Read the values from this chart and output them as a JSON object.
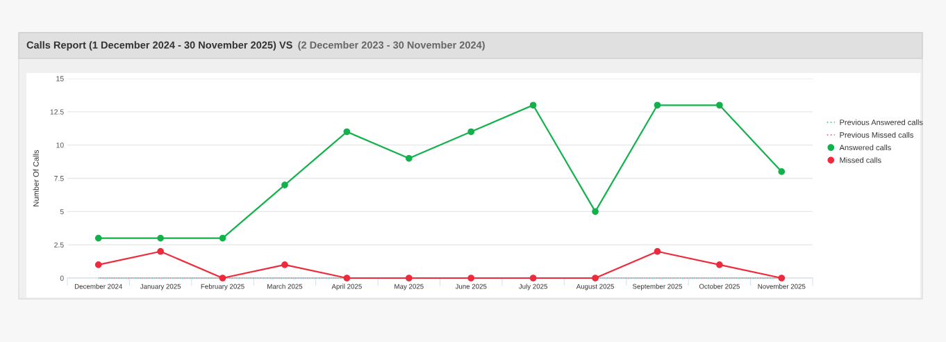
{
  "chart_data": {
    "type": "line",
    "title": "Calls Report (1 December 2024 - 30 November 2025) VS",
    "subtitle": "(2 December 2023 - 30 November 2024)",
    "ylabel": "Number Of Calls",
    "categories": [
      "December 2024",
      "January 2025",
      "February 2025",
      "March 2025",
      "April 2025",
      "May 2025",
      "June 2025",
      "July 2025",
      "August 2025",
      "September 2025",
      "October 2025",
      "November 2025"
    ],
    "series": [
      {
        "name": "Previous Answered calls",
        "color": "#2ec7b0",
        "marker": "none",
        "line_style": "dotted",
        "values": [
          0,
          0,
          0,
          0,
          0,
          0,
          0,
          0,
          0,
          0,
          0,
          0
        ]
      },
      {
        "name": "Previous Missed calls",
        "color": "#e0677a",
        "marker": "none",
        "line_style": "dotted",
        "values": [
          0,
          0,
          0,
          0,
          0,
          0,
          0,
          0,
          0,
          0,
          0,
          0
        ]
      },
      {
        "name": "Answered calls",
        "color": "#12b14b",
        "marker": "circle",
        "line_style": "solid",
        "values": [
          3,
          3,
          3,
          7,
          11,
          9,
          11,
          13,
          5,
          13,
          13,
          8
        ]
      },
      {
        "name": "Missed calls",
        "color": "#ee2a3b",
        "marker": "circle",
        "line_style": "solid",
        "values": [
          1,
          2,
          0,
          1,
          0,
          0,
          0,
          0,
          0,
          2,
          1,
          0
        ]
      }
    ],
    "ylim": [
      0,
      15
    ],
    "yticks": [
      0,
      2.5,
      5,
      7.5,
      10,
      12.5,
      15
    ],
    "grid": "y",
    "legend": "right"
  }
}
